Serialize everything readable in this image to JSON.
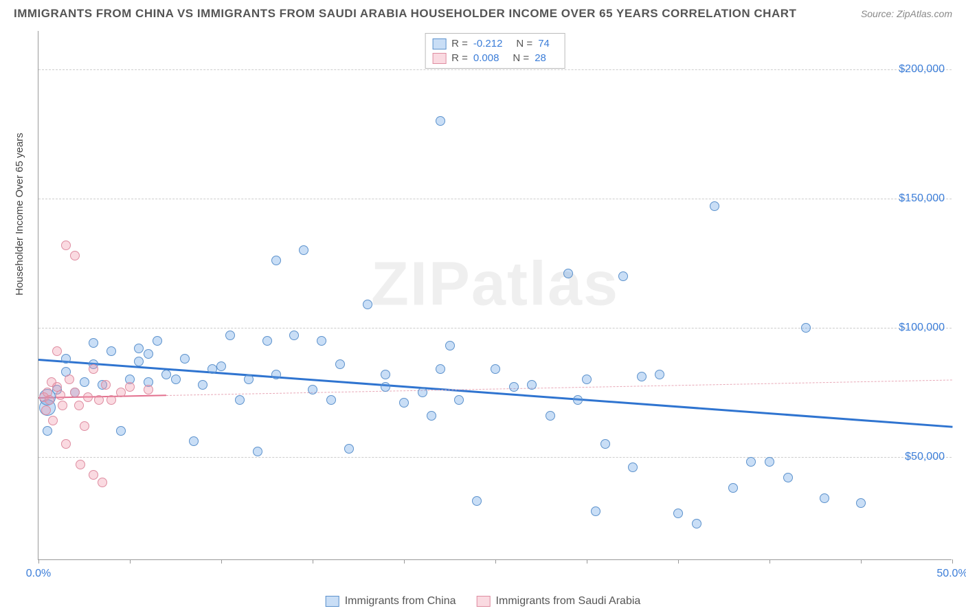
{
  "title": "IMMIGRANTS FROM CHINA VS IMMIGRANTS FROM SAUDI ARABIA HOUSEHOLDER INCOME OVER 65 YEARS CORRELATION CHART",
  "source": "Source: ZipAtlas.com",
  "watermark": "ZIPatlas",
  "ylabel": "Householder Income Over 65 years",
  "chart": {
    "type": "scatter",
    "xlim": [
      0,
      50
    ],
    "ylim": [
      10000,
      215000
    ],
    "xtick_positions": [
      0,
      5,
      10,
      15,
      20,
      25,
      30,
      35,
      40,
      45,
      50
    ],
    "xtick_labels": {
      "0": "0.0%",
      "50": "50.0%"
    },
    "ytick_positions": [
      50000,
      100000,
      150000,
      200000
    ],
    "ytick_labels": [
      "$50,000",
      "$100,000",
      "$150,000",
      "$200,000"
    ],
    "background_color": "#ffffff",
    "grid_color": "#cccccc",
    "axis_color": "#999999",
    "label_color": "#3b7dd8",
    "marker_size": 14,
    "marker_size_big": 24,
    "series": [
      {
        "name": "Immigrants from China",
        "fill": "rgba(100,160,230,0.35)",
        "stroke": "#5b91cc",
        "R": "-0.212",
        "N": "74",
        "trend": {
          "y_start": 88000,
          "y_end": 62000,
          "color": "#2f74d0",
          "width": 3,
          "dash": "none"
        },
        "points": [
          [
            0.5,
            69000
          ],
          [
            0.5,
            73000
          ],
          [
            0.5,
            60000
          ],
          [
            1,
            76000
          ],
          [
            1.5,
            83000
          ],
          [
            1.5,
            88000
          ],
          [
            2,
            75000
          ],
          [
            2.5,
            79000
          ],
          [
            3,
            94000
          ],
          [
            3,
            86000
          ],
          [
            3.5,
            78000
          ],
          [
            4,
            91000
          ],
          [
            4.5,
            60000
          ],
          [
            5,
            80000
          ],
          [
            5.5,
            92000
          ],
          [
            5.5,
            87000
          ],
          [
            6,
            90000
          ],
          [
            6,
            79000
          ],
          [
            6.5,
            95000
          ],
          [
            7,
            82000
          ],
          [
            7.5,
            80000
          ],
          [
            8,
            88000
          ],
          [
            8.5,
            56000
          ],
          [
            9,
            78000
          ],
          [
            9.5,
            84000
          ],
          [
            10,
            85000
          ],
          [
            10.5,
            97000
          ],
          [
            11,
            72000
          ],
          [
            12,
            52000
          ],
          [
            12.5,
            95000
          ],
          [
            13,
            126000
          ],
          [
            13,
            82000
          ],
          [
            14,
            97000
          ],
          [
            14.5,
            130000
          ],
          [
            15,
            76000
          ],
          [
            15.5,
            95000
          ],
          [
            16,
            72000
          ],
          [
            16.5,
            86000
          ],
          [
            17,
            53000
          ],
          [
            18,
            109000
          ],
          [
            19,
            82000
          ],
          [
            20,
            71000
          ],
          [
            21,
            75000
          ],
          [
            21.5,
            66000
          ],
          [
            22,
            180000
          ],
          [
            22.5,
            93000
          ],
          [
            23,
            72000
          ],
          [
            24,
            33000
          ],
          [
            25,
            84000
          ],
          [
            26,
            77000
          ],
          [
            27,
            78000
          ],
          [
            28,
            66000
          ],
          [
            29,
            121000
          ],
          [
            29.5,
            72000
          ],
          [
            30,
            80000
          ],
          [
            30.5,
            29000
          ],
          [
            31,
            55000
          ],
          [
            32,
            120000
          ],
          [
            32.5,
            46000
          ],
          [
            33,
            81000
          ],
          [
            34,
            82000
          ],
          [
            35,
            28000
          ],
          [
            36,
            24000
          ],
          [
            37,
            147000
          ],
          [
            38,
            38000
          ],
          [
            39,
            48000
          ],
          [
            40,
            48000
          ],
          [
            41,
            42000
          ],
          [
            42,
            100000
          ],
          [
            43,
            34000
          ],
          [
            45,
            32000
          ],
          [
            22,
            84000
          ],
          [
            19,
            77000
          ],
          [
            11.5,
            80000
          ]
        ]
      },
      {
        "name": "Immigrants from Saudi Arabia",
        "fill": "rgba(240,150,170,0.35)",
        "stroke": "#de8ca0",
        "R": "0.008",
        "N": "28",
        "trend_solid": {
          "x_end": 7,
          "y_start": 73000,
          "y_end": 74000,
          "color": "#e36f8e",
          "width": 2
        },
        "trend_dash": {
          "y_start": 74000,
          "y_end": 80000,
          "color": "#e8a7b6",
          "width": 1
        },
        "points": [
          [
            0.3,
            73000
          ],
          [
            0.4,
            68000
          ],
          [
            0.5,
            75000
          ],
          [
            0.6,
            72000
          ],
          [
            0.7,
            79000
          ],
          [
            0.8,
            64000
          ],
          [
            1,
            77000
          ],
          [
            1,
            91000
          ],
          [
            1.2,
            74000
          ],
          [
            1.3,
            70000
          ],
          [
            1.5,
            132000
          ],
          [
            1.5,
            55000
          ],
          [
            1.7,
            80000
          ],
          [
            2,
            128000
          ],
          [
            2,
            75000
          ],
          [
            2.2,
            70000
          ],
          [
            2.3,
            47000
          ],
          [
            2.5,
            62000
          ],
          [
            2.7,
            73000
          ],
          [
            3,
            43000
          ],
          [
            3,
            84000
          ],
          [
            3.3,
            72000
          ],
          [
            3.5,
            40000
          ],
          [
            3.7,
            78000
          ],
          [
            4,
            72000
          ],
          [
            4.5,
            75000
          ],
          [
            5,
            77000
          ],
          [
            6,
            76000
          ]
        ]
      }
    ]
  },
  "legend_top": {
    "r_label": "R =",
    "n_label": "N ="
  },
  "legend_bottom": [
    {
      "label": "Immigrants from China",
      "fill": "rgba(100,160,230,0.35)",
      "stroke": "#5b91cc"
    },
    {
      "label": "Immigrants from Saudi Arabia",
      "fill": "rgba(240,150,170,0.35)",
      "stroke": "#de8ca0"
    }
  ]
}
